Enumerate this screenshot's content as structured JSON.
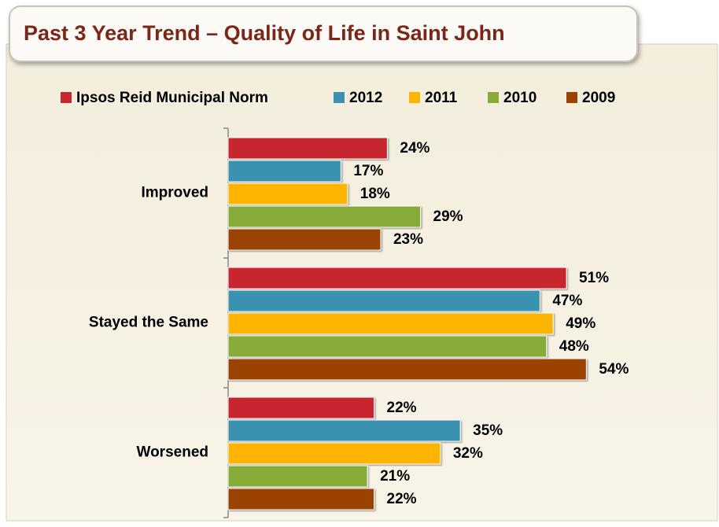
{
  "chart_data": {
    "type": "hbar",
    "title": "Past 3 Year Trend – Quality of Life in Saint John",
    "categories": [
      "Improved",
      "Stayed the Same",
      "Worsened"
    ],
    "series": [
      {
        "name": "Ipsos Reid Municipal Norm",
        "color": "#c8282d",
        "values": [
          24,
          51,
          22
        ],
        "value_labels": [
          "24%",
          "51%",
          "22%"
        ]
      },
      {
        "name": "2012",
        "color": "#3a91b0",
        "values": [
          17,
          47,
          35
        ],
        "value_labels": [
          "17%",
          "47%",
          "35%"
        ]
      },
      {
        "name": "2011",
        "color": "#ffb400",
        "values": [
          18,
          49,
          32
        ],
        "value_labels": [
          "18%",
          "49%",
          "32%"
        ]
      },
      {
        "name": "2010",
        "color": "#86ab37",
        "values": [
          29,
          48,
          21
        ],
        "value_labels": [
          "29%",
          "48%",
          "21%"
        ]
      },
      {
        "name": "2009",
        "color": "#9a4200",
        "values": [
          23,
          54,
          22
        ],
        "value_labels": [
          "23%",
          "54%",
          "22%"
        ]
      }
    ],
    "xlim": [
      0,
      74
    ],
    "legend": "top"
  }
}
